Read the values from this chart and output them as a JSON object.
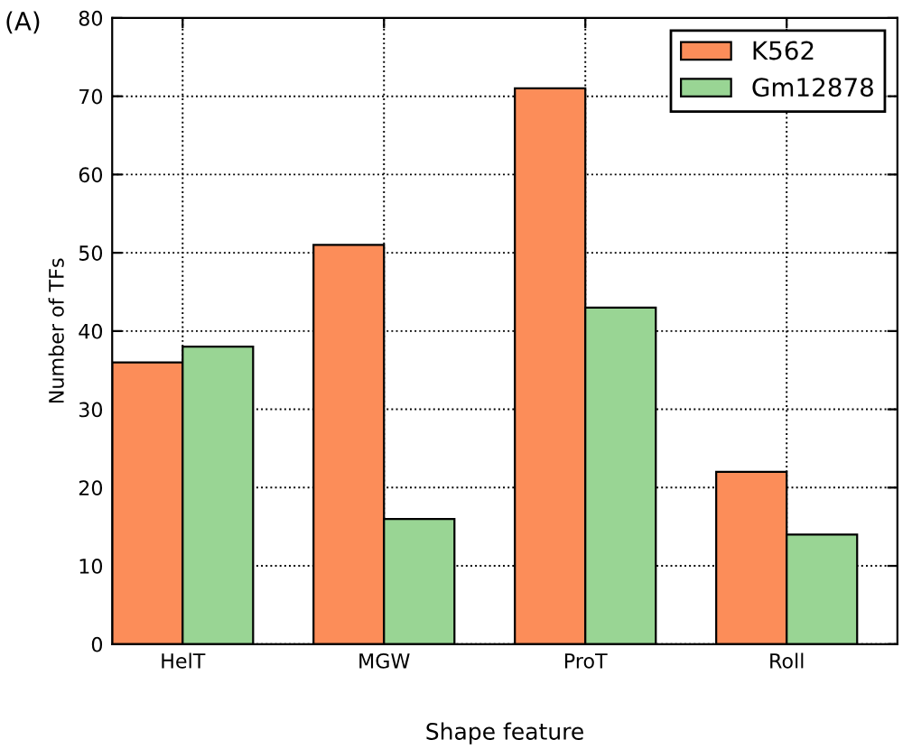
{
  "chart_data": {
    "type": "bar",
    "xlabel": "Shape feature",
    "ylabel": "Number of TFs",
    "annotations": [
      "(A)"
    ],
    "categories": [
      "HelT",
      "MGW",
      "ProT",
      "Roll"
    ],
    "series": [
      {
        "name": "K562",
        "color": "#fc8d59",
        "values": [
          36,
          51,
          71,
          22
        ]
      },
      {
        "name": "Gm12878",
        "color": "#99d594",
        "values": [
          38,
          16,
          43,
          14
        ]
      }
    ],
    "ylim": [
      0,
      80
    ],
    "yticks": [
      0,
      10,
      20,
      30,
      40,
      50,
      60,
      70,
      80
    ],
    "grid": true,
    "legend": "top right"
  }
}
